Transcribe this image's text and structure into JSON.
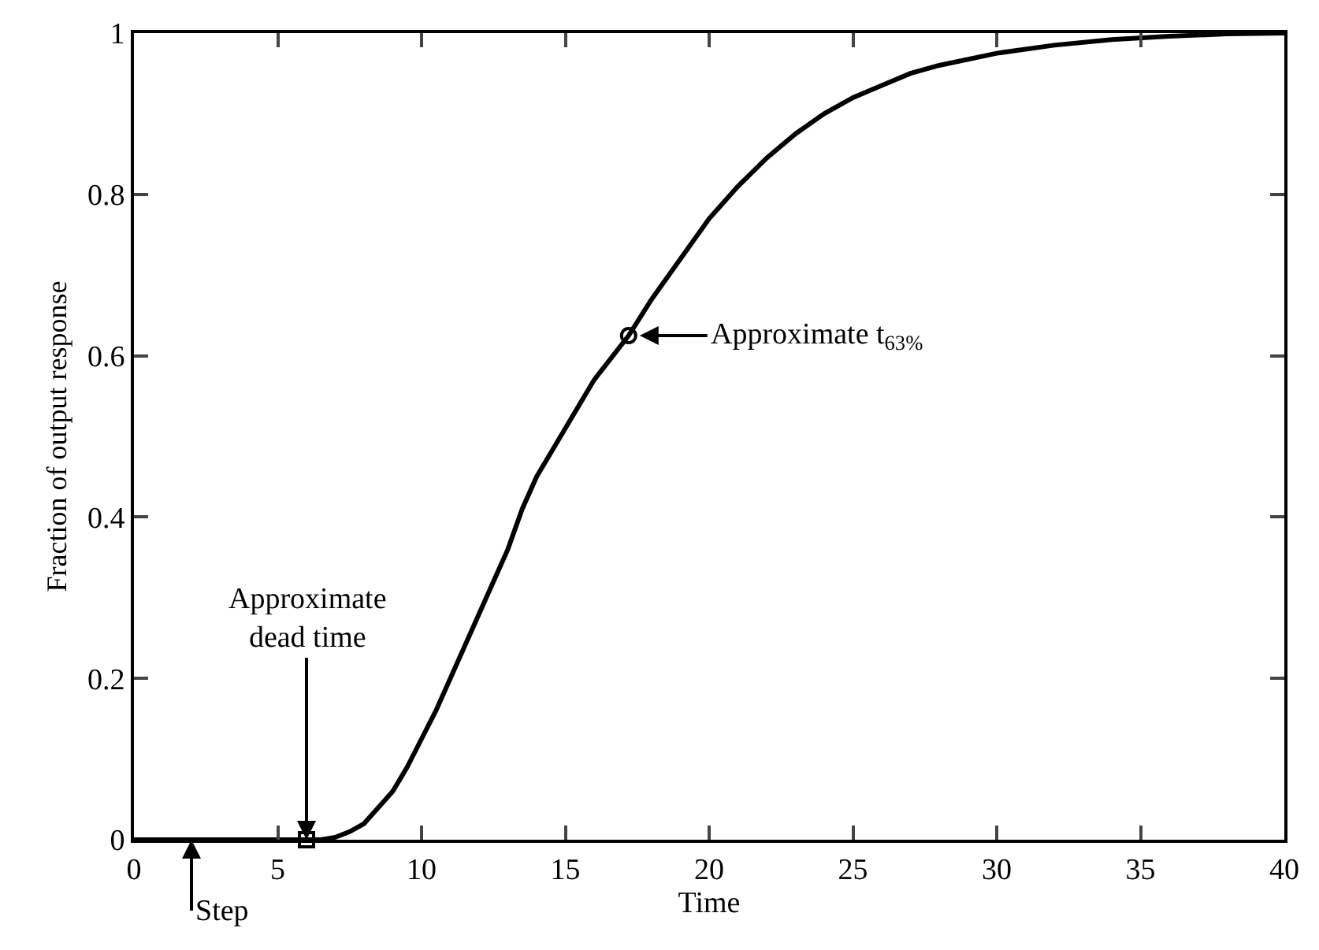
{
  "chart_data": {
    "type": "line",
    "xlabel": "Time",
    "ylabel": "Fraction of output response",
    "xlim": [
      0,
      40
    ],
    "ylim": [
      0,
      1
    ],
    "xticks": [
      0,
      5,
      10,
      15,
      20,
      25,
      30,
      35,
      40
    ],
    "yticks": [
      0,
      0.2,
      0.4,
      0.6,
      0.8,
      1
    ],
    "series": [
      {
        "color": "#000000",
        "marker": "none",
        "x": [
          0,
          2,
          4,
          6,
          6.5,
          7,
          7.5,
          8,
          8.5,
          9,
          9.5,
          10,
          10.5,
          11,
          11.5,
          12,
          12.5,
          13,
          13.5,
          14,
          14.5,
          15,
          16,
          17.2,
          18,
          19,
          20,
          21,
          22,
          23,
          24,
          25,
          26,
          27,
          28,
          30,
          32,
          34,
          36,
          38,
          40
        ],
        "values": [
          0,
          0,
          0,
          0,
          0,
          0.003,
          0.01,
          0.02,
          0.04,
          0.06,
          0.09,
          0.125,
          0.16,
          0.2,
          0.24,
          0.28,
          0.32,
          0.36,
          0.41,
          0.45,
          0.48,
          0.51,
          0.57,
          0.625,
          0.67,
          0.72,
          0.77,
          0.81,
          0.845,
          0.875,
          0.9,
          0.92,
          0.935,
          0.95,
          0.96,
          0.975,
          0.985,
          0.992,
          0.996,
          0.999,
          1
        ]
      },
      {
        "type": "scatter",
        "color": "#000000",
        "marker": "square",
        "x": [
          6
        ],
        "values": [
          0
        ]
      },
      {
        "type": "scatter",
        "color": "#000000",
        "marker": "circle",
        "x": [
          17.2
        ],
        "values": [
          0.625
        ]
      }
    ],
    "annotations": [
      {
        "text": "Approximate\ndead time",
        "x": 6,
        "y": 0
      },
      {
        "text": "Step",
        "x": 2,
        "y": 0
      },
      {
        "text": "Approximate t$_{63%}$",
        "x": 17.2,
        "y": 0.625
      }
    ]
  }
}
